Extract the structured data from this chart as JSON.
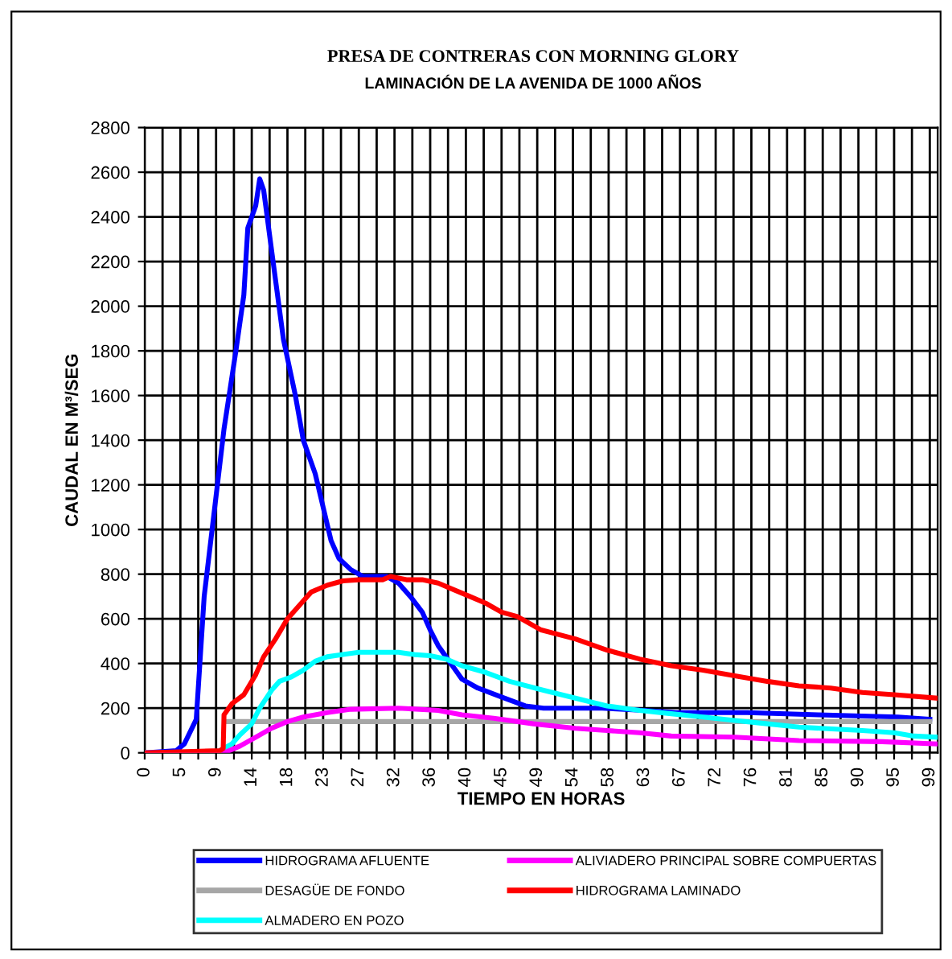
{
  "chart_data": {
    "type": "line",
    "title": "PRESA DE CONTRERAS CON MORNING GLORY",
    "subtitle": "LAMINACIÓN DE LA AVENIDA DE 1000 AÑOS",
    "xlabel": "TIEMPO EN HORAS",
    "ylabel": "CAUDAL EN M³/SEG",
    "xlim": [
      0,
      100
    ],
    "ylim": [
      0,
      2800
    ],
    "xticks": [
      0,
      {
        "value": 2.25,
        "label": null
      },
      {
        "value": 4.5,
        "label": "5"
      },
      {
        "value": 6.75,
        "label": null
      },
      9,
      {
        "value": 11.25,
        "label": null
      },
      {
        "value": 13.5,
        "label": "14"
      },
      {
        "value": 15.75,
        "label": null
      },
      18,
      {
        "value": 20.25,
        "label": null
      },
      {
        "value": 22.5,
        "label": "23"
      },
      {
        "value": 24.75,
        "label": null
      },
      27,
      {
        "value": 29.25,
        "label": null
      },
      {
        "value": 31.5,
        "label": "32"
      },
      {
        "value": 33.75,
        "label": null
      },
      36,
      {
        "value": 38.25,
        "label": null
      },
      {
        "value": 40.5,
        "label": "40"
      },
      {
        "value": 42.75,
        "label": null
      },
      45,
      {
        "value": 47.25,
        "label": null
      },
      {
        "value": 49.5,
        "label": "49"
      },
      {
        "value": 51.75,
        "label": null
      },
      54,
      {
        "value": 56.25,
        "label": null
      },
      {
        "value": 58.5,
        "label": "58"
      },
      {
        "value": 60.75,
        "label": null
      },
      63,
      {
        "value": 65.25,
        "label": null
      },
      {
        "value": 67.5,
        "label": "67"
      },
      {
        "value": 69.75,
        "label": null
      },
      72,
      {
        "value": 74.25,
        "label": null
      },
      {
        "value": 76.5,
        "label": "76"
      },
      {
        "value": 78.75,
        "label": null
      },
      81,
      {
        "value": 83.25,
        "label": null
      },
      {
        "value": 85.5,
        "label": "85"
      },
      {
        "value": 87.75,
        "label": null
      },
      90,
      {
        "value": 92.25,
        "label": null
      },
      {
        "value": 94.5,
        "label": "95"
      },
      {
        "value": 96.75,
        "label": null
      },
      99
    ],
    "yticks": [
      0,
      200,
      400,
      600,
      800,
      1000,
      1200,
      1400,
      1600,
      1800,
      2000,
      2200,
      2400,
      2600,
      2800
    ],
    "grid": true,
    "legend": "bottom",
    "marker": "none",
    "line_style": "solid",
    "series": [
      {
        "name": "HIDROGRAMA AFLUENTE",
        "color": "#0000ff",
        "x": [
          0,
          4,
          5,
          6.5,
          7.5,
          8.5,
          9,
          10,
          11.5,
          12.5,
          13,
          14,
          14.5,
          15,
          16,
          17.5,
          19,
          20,
          21.5,
          22.5,
          23.5,
          24.5,
          26,
          27.5,
          29.5,
          30.5,
          32,
          33.5,
          35,
          36,
          37,
          38,
          39,
          40,
          42,
          45,
          48,
          50.3,
          57.7,
          63,
          67,
          76,
          85,
          95,
          99
        ],
        "values": [
          0,
          10,
          40,
          150,
          700,
          1000,
          1150,
          1450,
          1800,
          2050,
          2350,
          2450,
          2570,
          2520,
          2250,
          1850,
          1600,
          1400,
          1250,
          1100,
          950,
          870,
          820,
          790,
          790,
          790,
          760,
          700,
          630,
          550,
          480,
          430,
          380,
          330,
          290,
          250,
          210,
          200,
          200,
          190,
          180,
          180,
          170,
          160,
          150
        ]
      },
      {
        "name": "DESAGÜE DE FONDO",
        "color": "#a6a6a6",
        "x": [
          10.3,
          99
        ],
        "values": [
          140,
          140
        ]
      },
      {
        "name": "ALMADERO EN POZO",
        "color": "#00ffff",
        "x": [
          0,
          9,
          10,
          11,
          12,
          13.5,
          14.5,
          16,
          17,
          18.5,
          20,
          21.5,
          23,
          25,
          27,
          32,
          34,
          36,
          38,
          40,
          43,
          46,
          50.3,
          58.3,
          62.4,
          66.4,
          70.4,
          74.4,
          78.5,
          82.5,
          90.5,
          94.5,
          97,
          99.9
        ],
        "values": [
          0,
          0,
          20,
          40,
          80,
          130,
          200,
          280,
          320,
          340,
          370,
          410,
          430,
          440,
          450,
          450,
          440,
          435,
          420,
          390,
          360,
          320,
          280,
          210,
          190,
          175,
          160,
          145,
          130,
          115,
          100,
          90,
          75,
          70
        ]
      },
      {
        "name": "ALIVIADERO PRINCIPAL SOBRE COMPUERTAS",
        "color": "#ff00ff",
        "x": [
          0,
          10,
          12,
          14,
          16,
          18,
          20,
          23,
          26,
          32,
          37,
          40,
          44,
          49,
          54.3,
          58.3,
          62.4,
          66.4,
          74.4,
          82.5,
          93,
          99.9
        ],
        "values": [
          0,
          0,
          30,
          70,
          110,
          140,
          160,
          180,
          195,
          200,
          190,
          170,
          155,
          130,
          110,
          100,
          90,
          75,
          70,
          55,
          50,
          40
        ]
      },
      {
        "name": "HIDROGRAMA LAMINADO",
        "color": "#ff0000",
        "x": [
          0,
          9.5,
          9.9,
          10,
          11,
          12.5,
          14,
          15,
          16.5,
          18,
          19.5,
          21,
          23,
          25,
          27,
          30,
          31,
          33,
          35,
          37,
          39,
          41,
          43,
          45,
          47,
          50,
          54.3,
          58.3,
          62.4,
          66.4,
          70.4,
          74.4,
          78.5,
          82.5,
          86.5,
          90.5,
          94.5,
          99.8
        ],
        "values": [
          0,
          10,
          20,
          170,
          220,
          260,
          350,
          430,
          510,
          600,
          660,
          720,
          750,
          770,
          775,
          775,
          790,
          775,
          775,
          760,
          730,
          700,
          670,
          630,
          610,
          550,
          510,
          460,
          420,
          390,
          370,
          345,
          320,
          300,
          290,
          270,
          260,
          245
        ]
      }
    ]
  }
}
